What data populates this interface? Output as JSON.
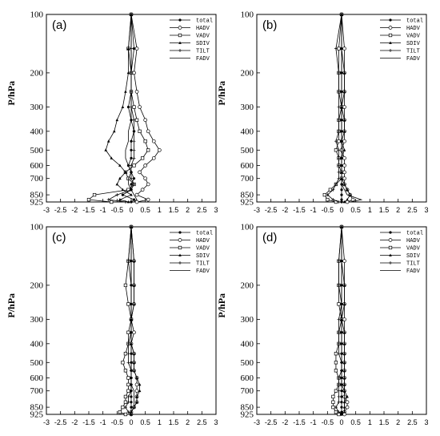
{
  "figure": {
    "y_axis_label": "P/hPa",
    "x_ticks": [
      "-3",
      "-2.5",
      "-2",
      "-1.5",
      "-1",
      "-0.5",
      "0",
      "0.5",
      "1",
      "1.5",
      "2",
      "2.5",
      "3"
    ],
    "legend_labels": [
      "total",
      "HADV",
      "VADV",
      "SDIV",
      "TILT",
      "FADV"
    ]
  },
  "chart_data": [
    {
      "type": "line",
      "panel_label": "(a)",
      "xlim": [
        -3,
        3
      ],
      "ylim": [
        925,
        100
      ],
      "y_scale": "log",
      "y_ticks": [
        100,
        200,
        300,
        400,
        500,
        600,
        700,
        850,
        925
      ],
      "legend_position": "top-right",
      "y": [
        100,
        150,
        200,
        250,
        300,
        350,
        400,
        450,
        500,
        550,
        600,
        650,
        700,
        750,
        800,
        850,
        900,
        925
      ],
      "series": [
        {
          "name": "total",
          "values": [
            0.0,
            0.1,
            0.0,
            0.0,
            -0.1,
            0.0,
            0.1,
            0.0,
            0.0,
            0.0,
            -0.1,
            0.0,
            0.1,
            0.0,
            0.0,
            -0.3,
            0.1,
            0.0
          ]
        },
        {
          "name": "HADV",
          "values": [
            0.0,
            0.2,
            0.1,
            0.2,
            0.3,
            0.5,
            0.6,
            0.8,
            1.0,
            0.8,
            0.5,
            0.3,
            0.5,
            0.6,
            0.4,
            0.2,
            0.6,
            0.2
          ]
        },
        {
          "name": "VADV",
          "values": [
            0.0,
            -0.1,
            0.0,
            0.0,
            0.1,
            0.2,
            0.3,
            0.5,
            0.6,
            0.4,
            0.1,
            -0.2,
            -0.1,
            0.1,
            -0.1,
            -1.3,
            -1.5,
            -0.7
          ]
        },
        {
          "name": "SDIV",
          "values": [
            0.0,
            -0.1,
            -0.1,
            -0.2,
            -0.3,
            -0.5,
            -0.6,
            -0.8,
            -0.9,
            -0.7,
            -0.4,
            -0.2,
            -0.4,
            -0.5,
            -0.3,
            0.0,
            -0.4,
            -0.1
          ]
        },
        {
          "name": "TILT",
          "values": [
            0.0,
            0.0,
            0.0,
            0.0,
            0.0,
            0.1,
            0.1,
            0.1,
            0.1,
            0.1,
            0.0,
            0.0,
            0.0,
            0.1,
            0.0,
            -0.5,
            -0.8,
            -0.2
          ]
        },
        {
          "name": "FADV",
          "values": [
            0.0,
            0.0,
            0.0,
            0.0,
            0.0,
            0.0,
            -0.1,
            -0.1,
            -0.2,
            -0.2,
            -0.1,
            0.0,
            -0.1,
            -0.1,
            0.0,
            0.1,
            0.2,
            0.1
          ]
        }
      ]
    },
    {
      "type": "line",
      "panel_label": "(b)",
      "xlim": [
        -3,
        3
      ],
      "ylim": [
        925,
        100
      ],
      "y_scale": "log",
      "y_ticks": [
        100,
        200,
        300,
        400,
        500,
        600,
        700,
        850,
        925
      ],
      "legend_position": "top-right",
      "y": [
        100,
        150,
        200,
        250,
        300,
        350,
        400,
        450,
        500,
        550,
        600,
        650,
        700,
        750,
        800,
        850,
        900,
        925
      ],
      "series": [
        {
          "name": "total",
          "values": [
            0.0,
            0.0,
            0.0,
            0.0,
            0.0,
            0.0,
            0.0,
            0.0,
            0.0,
            0.0,
            0.0,
            0.0,
            0.0,
            0.0,
            0.0,
            0.0,
            0.0,
            0.0
          ]
        },
        {
          "name": "HADV",
          "values": [
            0.0,
            0.1,
            0.1,
            0.1,
            0.1,
            0.1,
            0.1,
            0.1,
            0.0,
            0.1,
            0.1,
            0.1,
            0.1,
            0.1,
            0.2,
            0.3,
            0.4,
            0.2
          ]
        },
        {
          "name": "VADV",
          "values": [
            0.0,
            -0.1,
            -0.1,
            -0.1,
            0.0,
            -0.1,
            -0.1,
            -0.1,
            -0.2,
            -0.1,
            -0.1,
            0.0,
            0.0,
            -0.2,
            -0.4,
            -0.6,
            -0.5,
            -0.2
          ]
        },
        {
          "name": "SDIV",
          "values": [
            0.0,
            0.0,
            0.1,
            0.1,
            0.0,
            0.1,
            0.1,
            0.0,
            0.1,
            0.0,
            0.0,
            0.0,
            0.0,
            0.1,
            0.2,
            0.3,
            0.2,
            0.1
          ]
        },
        {
          "name": "TILT",
          "values": [
            0.0,
            -0.2,
            -0.1,
            -0.1,
            -0.1,
            -0.1,
            -0.1,
            -0.2,
            -0.1,
            -0.1,
            -0.1,
            -0.1,
            -0.1,
            -0.2,
            -0.3,
            -0.5,
            -0.3,
            -0.1
          ]
        },
        {
          "name": "FADV",
          "values": [
            0.0,
            0.0,
            0.0,
            0.0,
            0.0,
            0.0,
            0.0,
            0.0,
            0.0,
            0.0,
            0.0,
            0.0,
            0.0,
            0.0,
            0.1,
            0.2,
            0.7,
            0.3
          ]
        }
      ]
    },
    {
      "type": "line",
      "panel_label": "(c)",
      "xlim": [
        -3,
        3
      ],
      "ylim": [
        925,
        100
      ],
      "y_scale": "log",
      "y_ticks": [
        100,
        200,
        300,
        400,
        500,
        600,
        700,
        850,
        925
      ],
      "legend_position": "top-right",
      "y": [
        100,
        150,
        200,
        250,
        300,
        350,
        400,
        450,
        500,
        550,
        600,
        650,
        700,
        750,
        800,
        850,
        900,
        925
      ],
      "series": [
        {
          "name": "total",
          "values": [
            0.0,
            0.0,
            0.0,
            0.0,
            0.0,
            0.0,
            0.0,
            0.0,
            0.0,
            0.0,
            0.0,
            0.0,
            0.0,
            0.0,
            0.0,
            0.0,
            0.0,
            0.0
          ]
        },
        {
          "name": "HADV",
          "values": [
            0.0,
            0.1,
            0.1,
            0.1,
            0.0,
            0.1,
            0.0,
            0.1,
            0.1,
            0.1,
            0.2,
            0.2,
            0.2,
            0.2,
            0.2,
            0.1,
            0.0,
            0.0
          ]
        },
        {
          "name": "VADV",
          "values": [
            0.0,
            -0.1,
            -0.2,
            -0.1,
            0.0,
            -0.1,
            -0.1,
            -0.2,
            -0.3,
            -0.2,
            -0.1,
            -0.1,
            -0.1,
            -0.2,
            -0.2,
            -0.3,
            -0.4,
            -0.2
          ]
        },
        {
          "name": "SDIV",
          "values": [
            0.0,
            0.1,
            0.1,
            0.1,
            0.0,
            0.0,
            0.0,
            0.1,
            0.1,
            0.1,
            0.2,
            0.3,
            0.3,
            0.2,
            0.2,
            0.1,
            0.0,
            0.0
          ]
        },
        {
          "name": "TILT",
          "values": [
            0.0,
            -0.1,
            0.0,
            0.0,
            0.0,
            0.0,
            -0.1,
            -0.1,
            -0.1,
            0.0,
            0.0,
            0.0,
            0.0,
            -0.1,
            -0.1,
            -0.2,
            -0.1,
            0.0
          ]
        },
        {
          "name": "FADV",
          "values": [
            0.0,
            0.0,
            0.0,
            0.0,
            0.0,
            0.0,
            0.0,
            0.0,
            0.0,
            0.0,
            0.0,
            0.0,
            0.1,
            0.1,
            0.1,
            0.1,
            0.0,
            0.0
          ]
        }
      ]
    },
    {
      "type": "line",
      "panel_label": "(d)",
      "xlim": [
        -3,
        3
      ],
      "ylim": [
        925,
        100
      ],
      "y_scale": "log",
      "y_ticks": [
        100,
        200,
        300,
        400,
        500,
        600,
        700,
        850,
        925
      ],
      "legend_position": "top-right",
      "y": [
        100,
        150,
        200,
        250,
        300,
        350,
        400,
        450,
        500,
        550,
        600,
        650,
        700,
        750,
        800,
        850,
        900,
        925
      ],
      "series": [
        {
          "name": "total",
          "values": [
            0.0,
            0.0,
            0.0,
            0.0,
            0.0,
            0.0,
            0.0,
            0.0,
            0.0,
            0.0,
            0.0,
            0.0,
            0.0,
            0.0,
            0.0,
            0.0,
            0.0,
            0.0
          ]
        },
        {
          "name": "HADV",
          "values": [
            0.0,
            0.1,
            0.1,
            0.1,
            0.1,
            0.1,
            0.1,
            0.1,
            0.1,
            0.1,
            0.1,
            0.1,
            0.1,
            0.1,
            0.2,
            0.2,
            0.1,
            0.1
          ]
        },
        {
          "name": "VADV",
          "values": [
            0.0,
            -0.1,
            -0.1,
            -0.1,
            0.0,
            -0.1,
            -0.1,
            -0.2,
            -0.2,
            -0.2,
            -0.1,
            -0.1,
            -0.2,
            -0.3,
            -0.3,
            -0.3,
            -0.2,
            -0.1
          ]
        },
        {
          "name": "SDIV",
          "values": [
            0.0,
            0.0,
            0.1,
            0.1,
            0.0,
            0.1,
            0.1,
            0.1,
            0.1,
            0.1,
            0.1,
            0.1,
            0.1,
            0.2,
            0.1,
            0.1,
            0.1,
            0.0
          ]
        },
        {
          "name": "TILT",
          "values": [
            0.0,
            -0.1,
            -0.1,
            0.0,
            -0.1,
            -0.1,
            -0.1,
            -0.1,
            0.0,
            0.0,
            -0.1,
            -0.1,
            -0.1,
            -0.1,
            -0.1,
            -0.2,
            -0.1,
            0.0
          ]
        },
        {
          "name": "FADV",
          "values": [
            0.0,
            0.0,
            0.0,
            0.0,
            0.0,
            0.0,
            0.0,
            0.0,
            0.0,
            0.0,
            0.0,
            0.0,
            0.1,
            0.1,
            0.1,
            0.1,
            0.1,
            0.0
          ]
        }
      ]
    }
  ]
}
